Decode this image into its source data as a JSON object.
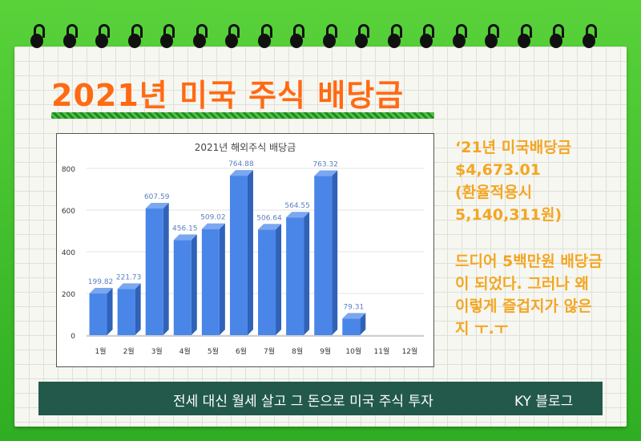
{
  "page": {
    "title": "2021년 미국 주식 배당금",
    "side_lines": [
      "‘21년 미국배당금",
      "$4,673.01",
      "(환율적용시",
      "5,140,311원)",
      "드디어 5백만원 배당금",
      "이 되었다. 그러나 왜",
      "이렇게 즐겁지가 않은",
      "지 ㅜ.ㅜ"
    ],
    "banner_text": "전세 대신 월세 살고 그 돈으로 미국 주식 투자",
    "banner_sig": "KY 블로그"
  },
  "colors": {
    "title": "#ff6a13",
    "side_text": "#f3a623",
    "bar_front": "#4a86e8",
    "banner": "#22594b",
    "frame": "#3fbf2a"
  },
  "chart_data": {
    "type": "bar",
    "title": "2021년 해외주식 배당금",
    "categories": [
      "1월",
      "2월",
      "3월",
      "4월",
      "5월",
      "6월",
      "7월",
      "8월",
      "9월",
      "10월",
      "11월",
      "12월"
    ],
    "values": [
      199.82,
      221.73,
      607.59,
      456.15,
      509.02,
      764.88,
      506.64,
      564.55,
      763.32,
      79.31,
      null,
      null
    ],
    "value_labels": [
      "199.82",
      "221.73",
      "607.59",
      "456.15",
      "509.02",
      "764.88",
      "506.64",
      "564.55",
      "763.32",
      "79.31",
      "",
      ""
    ],
    "yticks": [
      0,
      200,
      400,
      600,
      800
    ],
    "ylim": [
      0,
      800
    ],
    "grid": true,
    "style": "3d"
  }
}
